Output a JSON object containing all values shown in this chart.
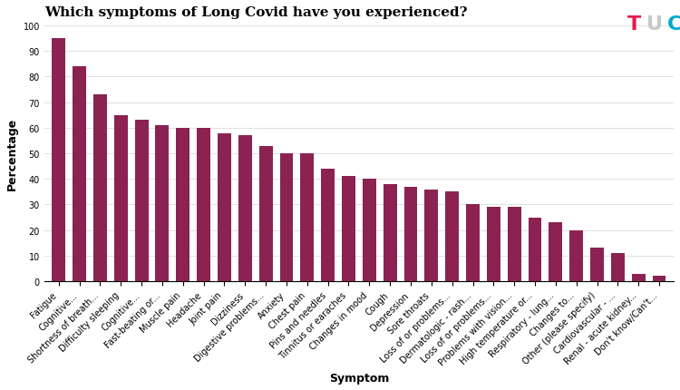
{
  "title": "Which symptoms of Long Covid have you experienced?",
  "xlabel": "Symptom",
  "ylabel": "Percentage",
  "bar_color": "#8B2252",
  "background_color": "#ffffff",
  "categories": [
    "Fatigue",
    "Cognitive...",
    "Shortness of breath...",
    "Difficulty sleeping",
    "Cognitive...",
    "Fast-beating or...",
    "Muscle pain",
    "Headache",
    "Joint pain",
    "Dizziness",
    "Digestive problems...",
    "Anxiety",
    "Chest pain",
    "Pins and needles",
    "Tinnitus or earaches",
    "Changes in mood",
    "Cough",
    "Depression",
    "Sore throats",
    "Loss of or problems...",
    "Dermatologic - rash...",
    "Loss of or problems...",
    "Problems with vision...",
    "High temperature or...",
    "Respiratory - lung...",
    "Changes to...",
    "Other (please specify)",
    "Cardiovascular - ...",
    "Renal - acute kidney...",
    "Don't know/Can't..."
  ],
  "values": [
    95,
    84,
    73,
    65,
    63,
    61,
    60,
    60,
    58,
    57,
    53,
    50,
    50,
    44,
    41,
    40,
    38,
    37,
    36,
    35,
    30,
    29,
    29,
    25,
    23,
    20,
    13,
    11,
    3,
    2
  ],
  "ylim": [
    0,
    100
  ],
  "yticks": [
    0,
    10,
    20,
    30,
    40,
    50,
    60,
    70,
    80,
    90,
    100
  ],
  "title_fontsize": 11,
  "axis_label_fontsize": 9,
  "tick_fontsize": 7,
  "tuc_T_color": "#E8174B",
  "tuc_U_color": "#C8C8C8",
  "tuc_C_color": "#00AACC"
}
